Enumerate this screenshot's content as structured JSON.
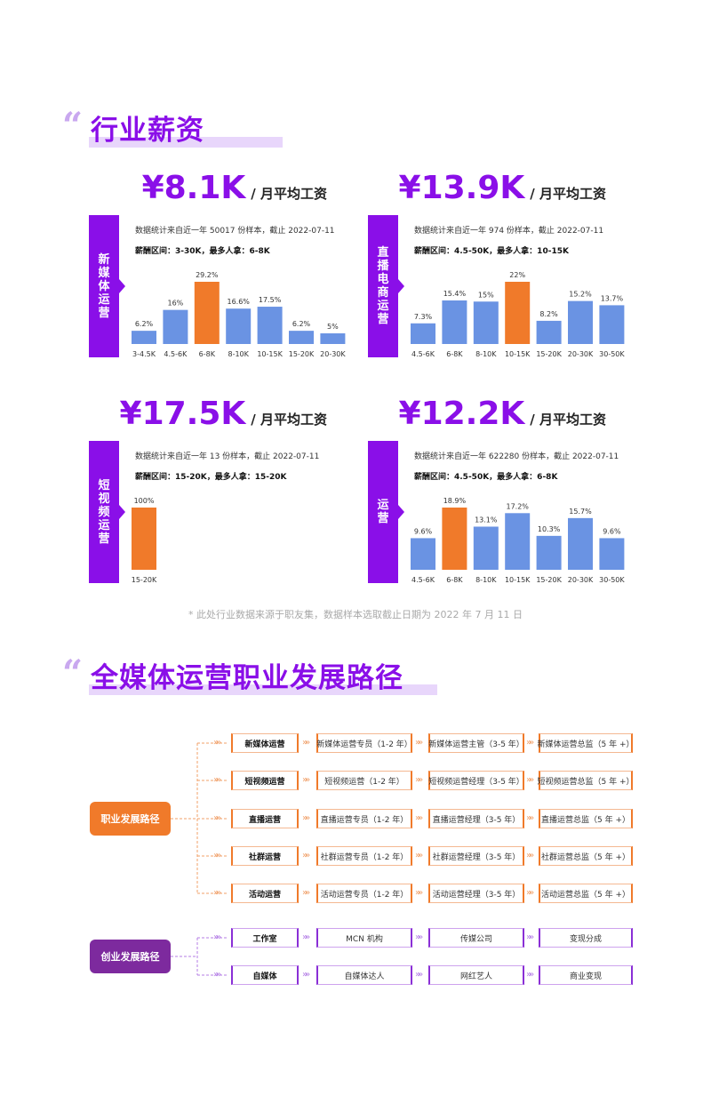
{
  "sections": {
    "salary_title": "行业薪资",
    "path_title": "全媒体运营职业发展路径"
  },
  "panels": [
    {
      "role": "新媒体运营",
      "salary": "¥8.1K",
      "unit": "/ 月平均工资",
      "stat": "数据统计来自近一年 50017 份样本，截止 2022-07-11",
      "range": "薪酬区间：3-30K，最多人拿：6-8K"
    },
    {
      "role": "直播电商运营",
      "salary": "¥13.9K",
      "unit": "/ 月平均工资",
      "stat": "数据统计来自近一年 974 份样本，截止 2022-07-11",
      "range": "薪酬区间：4.5-50K，最多人拿：10-15K"
    },
    {
      "role": "短视频运营",
      "salary": "¥17.5K",
      "unit": "/ 月平均工资",
      "stat": "数据统计来自近一年 13 份样本，截止 2022-07-11",
      "range": "薪酬区间：15-20K，最多人拿：15-20K"
    },
    {
      "role": "运营",
      "salary": "¥12.2K",
      "unit": "/ 月平均工资",
      "stat": "数据统计来自近一年 622280 份样本，截止 2022-07-11",
      "range": "薪酬区间：4.5-50K，最多人拿：6-8K"
    }
  ],
  "chart_data": [
    {
      "type": "bar",
      "categories": [
        "3-4.5K",
        "4.5-6K",
        "6-8K",
        "8-10K",
        "10-15K",
        "15-20K",
        "20-30K"
      ],
      "values": [
        6.2,
        16,
        29.2,
        16.6,
        17.5,
        6.2,
        5
      ],
      "labels": [
        "6.2%",
        "16%",
        "29.2%",
        "16.6%",
        "17.5%",
        "6.2%",
        "5%"
      ],
      "highlight": 2
    },
    {
      "type": "bar",
      "categories": [
        "4.5-6K",
        "6-8K",
        "8-10K",
        "10-15K",
        "15-20K",
        "20-30K",
        "30-50K"
      ],
      "values": [
        7.3,
        15.4,
        15,
        22,
        8.2,
        15.2,
        13.7
      ],
      "labels": [
        "7.3%",
        "15.4%",
        "15%",
        "22%",
        "8.2%",
        "15.2%",
        "13.7%"
      ],
      "highlight": 3
    },
    {
      "type": "bar",
      "categories": [
        "15-20K"
      ],
      "values": [
        100
      ],
      "labels": [
        "100%"
      ],
      "highlight": 0
    },
    {
      "type": "bar",
      "categories": [
        "4.5-6K",
        "6-8K",
        "8-10K",
        "10-15K",
        "15-20K",
        "20-30K",
        "30-50K"
      ],
      "values": [
        9.6,
        18.9,
        13.1,
        17.2,
        10.3,
        15.7,
        9.6
      ],
      "labels": [
        "9.6%",
        "18.9%",
        "13.1%",
        "17.2%",
        "10.3%",
        "15.7%",
        "9.6%"
      ],
      "highlight": 1
    }
  ],
  "footnote": "* 此处行业数据来源于职友集，数据样本选取截止日期为 2022 年 7 月 11 日",
  "career": {
    "root": "职业发展路径",
    "rows": [
      {
        "cat": "新媒体运营",
        "steps": [
          "新媒体运营专员（1-2 年）",
          "新媒体运营主管（3-5 年）",
          "新媒体运营总监（5 年 +）"
        ]
      },
      {
        "cat": "短视频运营",
        "steps": [
          "短视频运营（1-2 年）",
          "短视频运营经理（3-5 年）",
          "短视频运营总监（5 年 +）"
        ]
      },
      {
        "cat": "直播运营",
        "steps": [
          "直播运营专员（1-2 年）",
          "直播运营经理（3-5 年）",
          "直播运营总监（5 年 +）"
        ]
      },
      {
        "cat": "社群运营",
        "steps": [
          "社群运营专员（1-2 年）",
          "社群运营经理（3-5 年）",
          "社群运营总监（5 年 +）"
        ]
      },
      {
        "cat": "活动运营",
        "steps": [
          "活动运营专员（1-2 年）",
          "活动运营经理（3-5 年）",
          "活动运营总监（5 年 +）"
        ]
      }
    ]
  },
  "startup": {
    "root": "创业发展路径",
    "rows": [
      {
        "cat": "工作室",
        "steps": [
          "MCN 机构",
          "传媒公司",
          "变现分成"
        ]
      },
      {
        "cat": "自媒体",
        "steps": [
          "自媒体达人",
          "网红艺人",
          "商业变现"
        ]
      }
    ]
  },
  "colors": {
    "purple": "#8a0fe8",
    "orange": "#f07a2a",
    "bar_blue": "#6a93e3",
    "startup_purple": "#7d2a9e"
  }
}
